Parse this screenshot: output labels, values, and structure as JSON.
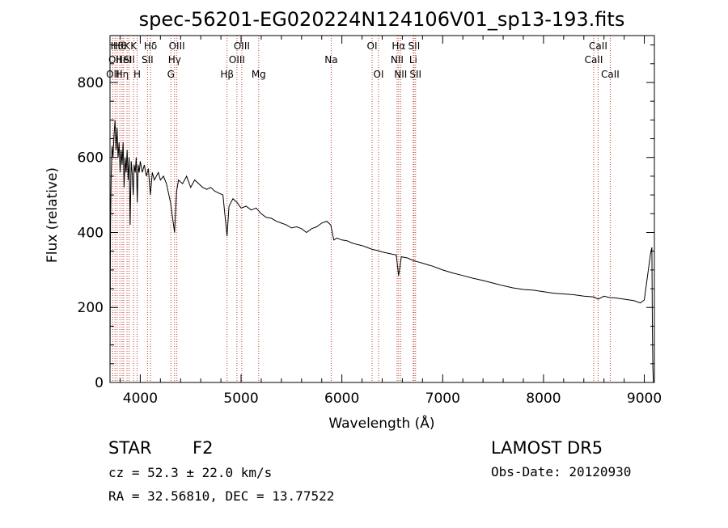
{
  "chart_data": {
    "type": "line",
    "title": "spec-56201-EG020224N124106V01_sp13-193.fits",
    "xlabel": "Wavelength (Å)",
    "ylabel": "Flux (relative)",
    "xlim": [
      3700,
      9100
    ],
    "ylim": [
      0,
      925
    ],
    "xticks": [
      4000,
      5000,
      6000,
      7000,
      8000,
      9000
    ],
    "yticks": [
      0,
      200,
      400,
      600,
      800
    ],
    "grid": false,
    "series": [
      {
        "points": [
          [
            3700,
            0
          ],
          [
            3705,
            420
          ],
          [
            3712,
            560
          ],
          [
            3720,
            630
          ],
          [
            3730,
            600
          ],
          [
            3740,
            660
          ],
          [
            3750,
            700
          ],
          [
            3760,
            620
          ],
          [
            3770,
            680
          ],
          [
            3780,
            600
          ],
          [
            3790,
            640
          ],
          [
            3800,
            560
          ],
          [
            3810,
            620
          ],
          [
            3820,
            580
          ],
          [
            3830,
            640
          ],
          [
            3840,
            520
          ],
          [
            3850,
            600
          ],
          [
            3860,
            560
          ],
          [
            3870,
            620
          ],
          [
            3880,
            540
          ],
          [
            3890,
            600
          ],
          [
            3900,
            420
          ],
          [
            3910,
            590
          ],
          [
            3920,
            560
          ],
          [
            3930,
            500
          ],
          [
            3940,
            580
          ],
          [
            3950,
            560
          ],
          [
            3960,
            600
          ],
          [
            3970,
            480
          ],
          [
            3980,
            580
          ],
          [
            3990,
            560
          ],
          [
            4000,
            590
          ],
          [
            4020,
            560
          ],
          [
            4040,
            580
          ],
          [
            4060,
            550
          ],
          [
            4080,
            570
          ],
          [
            4100,
            500
          ],
          [
            4120,
            560
          ],
          [
            4140,
            540
          ],
          [
            4160,
            550
          ],
          [
            4180,
            560
          ],
          [
            4200,
            540
          ],
          [
            4230,
            550
          ],
          [
            4260,
            530
          ],
          [
            4300,
            480
          ],
          [
            4320,
            440
          ],
          [
            4340,
            400
          ],
          [
            4360,
            510
          ],
          [
            4380,
            540
          ],
          [
            4420,
            530
          ],
          [
            4460,
            550
          ],
          [
            4500,
            520
          ],
          [
            4540,
            540
          ],
          [
            4580,
            530
          ],
          [
            4620,
            520
          ],
          [
            4660,
            515
          ],
          [
            4700,
            520
          ],
          [
            4740,
            510
          ],
          [
            4780,
            505
          ],
          [
            4820,
            500
          ],
          [
            4861,
            390
          ],
          [
            4880,
            470
          ],
          [
            4920,
            490
          ],
          [
            4960,
            480
          ],
          [
            5000,
            465
          ],
          [
            5050,
            470
          ],
          [
            5100,
            460
          ],
          [
            5150,
            465
          ],
          [
            5200,
            450
          ],
          [
            5250,
            440
          ],
          [
            5300,
            438
          ],
          [
            5350,
            430
          ],
          [
            5400,
            425
          ],
          [
            5450,
            420
          ],
          [
            5500,
            412
          ],
          [
            5550,
            415
          ],
          [
            5600,
            410
          ],
          [
            5650,
            400
          ],
          [
            5700,
            410
          ],
          [
            5750,
            415
          ],
          [
            5800,
            425
          ],
          [
            5850,
            430
          ],
          [
            5890,
            420
          ],
          [
            5920,
            380
          ],
          [
            5950,
            385
          ],
          [
            6000,
            380
          ],
          [
            6050,
            378
          ],
          [
            6100,
            372
          ],
          [
            6150,
            368
          ],
          [
            6200,
            365
          ],
          [
            6250,
            360
          ],
          [
            6300,
            355
          ],
          [
            6350,
            352
          ],
          [
            6400,
            348
          ],
          [
            6450,
            345
          ],
          [
            6500,
            342
          ],
          [
            6540,
            340
          ],
          [
            6563,
            285
          ],
          [
            6590,
            335
          ],
          [
            6650,
            332
          ],
          [
            6700,
            326
          ],
          [
            6750,
            322
          ],
          [
            6800,
            318
          ],
          [
            6850,
            314
          ],
          [
            6900,
            310
          ],
          [
            6950,
            305
          ],
          [
            7000,
            300
          ],
          [
            7100,
            292
          ],
          [
            7200,
            285
          ],
          [
            7300,
            278
          ],
          [
            7400,
            272
          ],
          [
            7500,
            265
          ],
          [
            7600,
            258
          ],
          [
            7700,
            252
          ],
          [
            7800,
            248
          ],
          [
            7900,
            246
          ],
          [
            8000,
            242
          ],
          [
            8100,
            238
          ],
          [
            8200,
            236
          ],
          [
            8300,
            234
          ],
          [
            8400,
            230
          ],
          [
            8500,
            228
          ],
          [
            8542,
            222
          ],
          [
            8600,
            230
          ],
          [
            8662,
            226
          ],
          [
            8700,
            226
          ],
          [
            8800,
            222
          ],
          [
            8900,
            218
          ],
          [
            8960,
            212
          ],
          [
            9000,
            220
          ],
          [
            9020,
            260
          ],
          [
            9040,
            300
          ],
          [
            9060,
            340
          ],
          [
            9075,
            360
          ],
          [
            9080,
            150
          ],
          [
            9085,
            40
          ],
          [
            9090,
            0
          ]
        ]
      }
    ],
    "lines": [
      {
        "wl": 3727,
        "row": 2,
        "label": "OII"
      },
      {
        "wl": 3750,
        "row": 1,
        "label": "OII"
      },
      {
        "wl": 3771,
        "row": 0,
        "label": "Hθ"
      },
      {
        "wl": 3798,
        "row": 0,
        "label": "Hθ"
      },
      {
        "wl": 3820,
        "row": 2,
        "label": "Hη"
      },
      {
        "wl": 3835,
        "row": 1,
        "label": "HeI"
      },
      {
        "wl": 3869,
        "row": 0,
        "label": "K"
      },
      {
        "wl": 3889,
        "row": 1,
        "label": "SII"
      },
      {
        "wl": 3934,
        "row": 0,
        "label": "K"
      },
      {
        "wl": 3969,
        "row": 2,
        "label": "H"
      },
      {
        "wl": 4072,
        "row": 1,
        "label": "SII"
      },
      {
        "wl": 4102,
        "row": 0,
        "label": "Hδ"
      },
      {
        "wl": 4304,
        "row": 2,
        "label": "G"
      },
      {
        "wl": 4340,
        "row": 1,
        "label": "Hγ"
      },
      {
        "wl": 4363,
        "row": 0,
        "label": "OIII"
      },
      {
        "wl": 4861,
        "row": 2,
        "label": "Hβ"
      },
      {
        "wl": 4959,
        "row": 1,
        "label": "OIII"
      },
      {
        "wl": 5007,
        "row": 0,
        "label": "OIII"
      },
      {
        "wl": 5175,
        "row": 2,
        "label": "Mg"
      },
      {
        "wl": 5894,
        "row": 1,
        "label": "Na"
      },
      {
        "wl": 6300,
        "row": 0,
        "label": "OI"
      },
      {
        "wl": 6364,
        "row": 2,
        "label": "OI"
      },
      {
        "wl": 6548,
        "row": 1,
        "label": "NII"
      },
      {
        "wl": 6563,
        "row": 0,
        "label": "Hα"
      },
      {
        "wl": 6583,
        "row": 2,
        "label": "NII"
      },
      {
        "wl": 6708,
        "row": 1,
        "label": "Li"
      },
      {
        "wl": 6716,
        "row": 0,
        "label": "SII"
      },
      {
        "wl": 6731,
        "row": 2,
        "label": "SII"
      },
      {
        "wl": 8498,
        "row": 1,
        "label": "CaII"
      },
      {
        "wl": 8542,
        "row": 0,
        "label": "CaII"
      },
      {
        "wl": 8662,
        "row": 2,
        "label": "CaII"
      }
    ]
  },
  "info": {
    "object_class": "STAR",
    "subclass": "F2",
    "survey": "LAMOST DR5",
    "cz": "cz = 52.3 ± 22.0 km/s",
    "obs_date": "Obs-Date: 20120930",
    "coords": "RA =  32.56810, DEC =  13.77522"
  },
  "colors": {
    "line_marker": "#c0392b",
    "spectrum": "#000000",
    "frame": "#000000"
  }
}
